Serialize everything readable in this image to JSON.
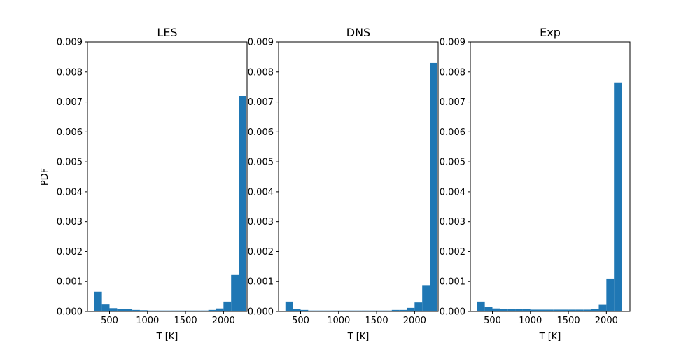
{
  "chart_data": [
    {
      "type": "bar",
      "title": "LES",
      "xlabel": "T [K]",
      "ylabel": "PDF",
      "xlim": [
        210,
        2310
      ],
      "ylim": [
        0,
        0.009
      ],
      "xticks": [
        500,
        1000,
        1500,
        2000
      ],
      "xtick_labels": [
        "500",
        "1000",
        "1500",
        "2000"
      ],
      "yticks": [
        0,
        0.001,
        0.002,
        0.003,
        0.004,
        0.005,
        0.006,
        0.007,
        0.008,
        0.009
      ],
      "ytick_labels": [
        "0.000",
        "0.001",
        "0.002",
        "0.003",
        "0.004",
        "0.005",
        "0.006",
        "0.007",
        "0.008",
        "0.009"
      ],
      "bin_start": 300,
      "bin_width": 100,
      "values": [
        0.00066,
        0.00023,
        0.00011,
        9e-05,
        7e-05,
        5e-05,
        4e-05,
        3e-05,
        3e-05,
        3e-05,
        3e-05,
        3e-05,
        3e-05,
        3e-05,
        3e-05,
        5e-05,
        0.0001,
        0.00033,
        0.00122,
        0.0072
      ],
      "color": "#1f77b4"
    },
    {
      "type": "bar",
      "title": "DNS",
      "xlabel": "T [K]",
      "ylabel": "",
      "xlim": [
        210,
        2310
      ],
      "ylim": [
        0,
        0.009
      ],
      "xticks": [
        500,
        1000,
        1500,
        2000
      ],
      "xtick_labels": [
        "500",
        "1000",
        "1500",
        "2000"
      ],
      "yticks": [
        0,
        0.001,
        0.002,
        0.003,
        0.004,
        0.005,
        0.006,
        0.007,
        0.008,
        0.009
      ],
      "ytick_labels": [
        "0.000",
        "0.001",
        "0.002",
        "0.003",
        "0.004",
        "0.005",
        "0.006",
        "0.007",
        "0.008",
        "0.009"
      ],
      "bin_start": 300,
      "bin_width": 100,
      "values": [
        0.00033,
        7e-05,
        5e-05,
        3e-05,
        3e-05,
        3e-05,
        3e-05,
        3e-05,
        3e-05,
        3e-05,
        3e-05,
        3e-05,
        3e-05,
        3e-05,
        5e-05,
        5e-05,
        0.00012,
        0.0003,
        0.00088,
        0.0083
      ],
      "color": "#1f77b4"
    },
    {
      "type": "bar",
      "title": "Exp",
      "xlabel": "T [K]",
      "ylabel": "",
      "xlim": [
        210,
        2310
      ],
      "ylim": [
        0,
        0.009
      ],
      "xticks": [
        500,
        1000,
        1500,
        2000
      ],
      "xtick_labels": [
        "500",
        "1000",
        "1500",
        "2000"
      ],
      "yticks": [
        0,
        0.001,
        0.002,
        0.003,
        0.004,
        0.005,
        0.006,
        0.007,
        0.008,
        0.009
      ],
      "ytick_labels": [
        "0.000",
        "0.001",
        "0.002",
        "0.003",
        "0.004",
        "0.005",
        "0.006",
        "0.007",
        "0.008",
        "0.009"
      ],
      "bin_start": 300,
      "bin_width": 100,
      "values": [
        0.00033,
        0.00015,
        0.0001,
        8e-05,
        7e-05,
        7e-05,
        7e-05,
        6e-05,
        6e-05,
        6e-05,
        6e-05,
        6e-05,
        6e-05,
        6e-05,
        6e-05,
        7e-05,
        0.00022,
        0.0011,
        0.00765
      ],
      "color": "#1f77b4"
    }
  ]
}
